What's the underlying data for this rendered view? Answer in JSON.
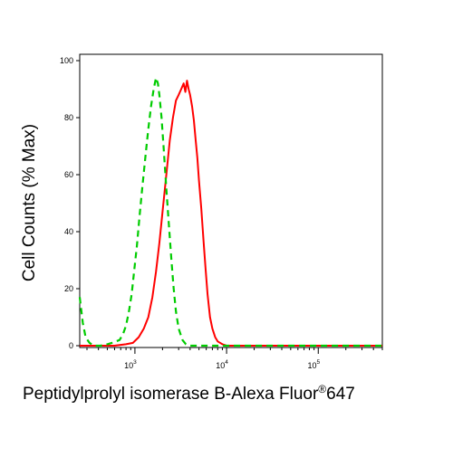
{
  "chart_data": {
    "type": "line",
    "xscale": "log",
    "xlim": [
      250,
      500000
    ],
    "ylim": [
      0,
      100
    ],
    "xlabel": "Peptidylprolyl isomerase B-Alexa Fluor",
    "xlabel_superscript": "®",
    "xlabel_suffix": "647",
    "ylabel": "Cell Counts (% Max)",
    "yticks": [
      {
        "value": 0,
        "label": "0"
      },
      {
        "value": 20,
        "label": "20"
      },
      {
        "value": 40,
        "label": "40"
      },
      {
        "value": 60,
        "label": "60"
      },
      {
        "value": 80,
        "label": "80"
      },
      {
        "value": 100,
        "label": "100"
      }
    ],
    "xticks_major": [
      {
        "value": 1000,
        "base": "10",
        "exp": "3"
      },
      {
        "value": 10000,
        "base": "10",
        "exp": "4"
      },
      {
        "value": 100000,
        "base": "10",
        "exp": "5"
      }
    ],
    "series": [
      {
        "color": "#ff0000",
        "style": "solid",
        "x": [
          250,
          600,
          800,
          950,
          1100,
          1250,
          1400,
          1550,
          1700,
          1850,
          2000,
          2200,
          2400,
          2600,
          2800,
          3000,
          3200,
          3400,
          3550,
          3700,
          3850,
          4000,
          4200,
          4400,
          4600,
          4800,
          5000,
          5300,
          5600,
          5900,
          6200,
          6600,
          7000,
          7500,
          8000,
          9000,
          10000,
          12000,
          20000,
          500000
        ],
        "y": [
          0,
          0,
          0.5,
          1,
          3,
          6,
          10,
          17,
          26,
          36,
          47,
          60,
          72,
          80,
          86,
          88,
          90,
          92,
          89,
          93,
          90,
          88,
          84,
          79,
          72,
          66,
          58,
          48,
          37,
          27,
          18,
          10,
          6,
          3,
          1.5,
          0.5,
          0,
          0,
          0,
          0
        ]
      },
      {
        "color": "#00cc00",
        "style": "dashed",
        "x": [
          250,
          270,
          290,
          320,
          360,
          420,
          500,
          560,
          620,
          680,
          740,
          800,
          860,
          920,
          980,
          1050,
          1120,
          1200,
          1300,
          1400,
          1500,
          1600,
          1700,
          1780,
          1850,
          1950,
          2050,
          2200,
          2350,
          2500,
          2650,
          2800,
          3000,
          3300,
          3600,
          4000,
          5000,
          500000
        ],
        "y": [
          17,
          8,
          3,
          1,
          0,
          0,
          0.5,
          1,
          1.5,
          2,
          4,
          7,
          12,
          18,
          26,
          35,
          45,
          55,
          66,
          76,
          84,
          90,
          94,
          92,
          88,
          80,
          70,
          55,
          42,
          30,
          20,
          12,
          6,
          2,
          0.5,
          0,
          0,
          0
        ]
      }
    ]
  }
}
